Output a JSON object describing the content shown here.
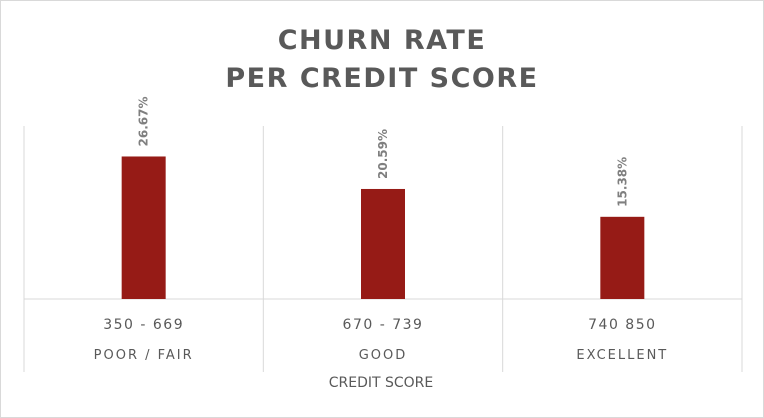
{
  "chart_data": {
    "type": "bar",
    "title": "CHURN RATE",
    "subtitle": "PER CREDIT SCORE",
    "categories": [
      "350 - 669",
      "670 - 739",
      "740 850"
    ],
    "category_groups": [
      "POOR / FAIR",
      "GOOD",
      "EXCELLENT"
    ],
    "values": [
      26.67,
      20.59,
      15.38
    ],
    "value_labels": [
      "26.67%",
      "20.59%",
      "15.38%"
    ],
    "xlabel": "CREDIT SCORE",
    "ylabel": "",
    "ylim": [
      0,
      32
    ],
    "grid": false,
    "legend": "none",
    "bar_color": "#961B16",
    "text_color": "#595959"
  }
}
